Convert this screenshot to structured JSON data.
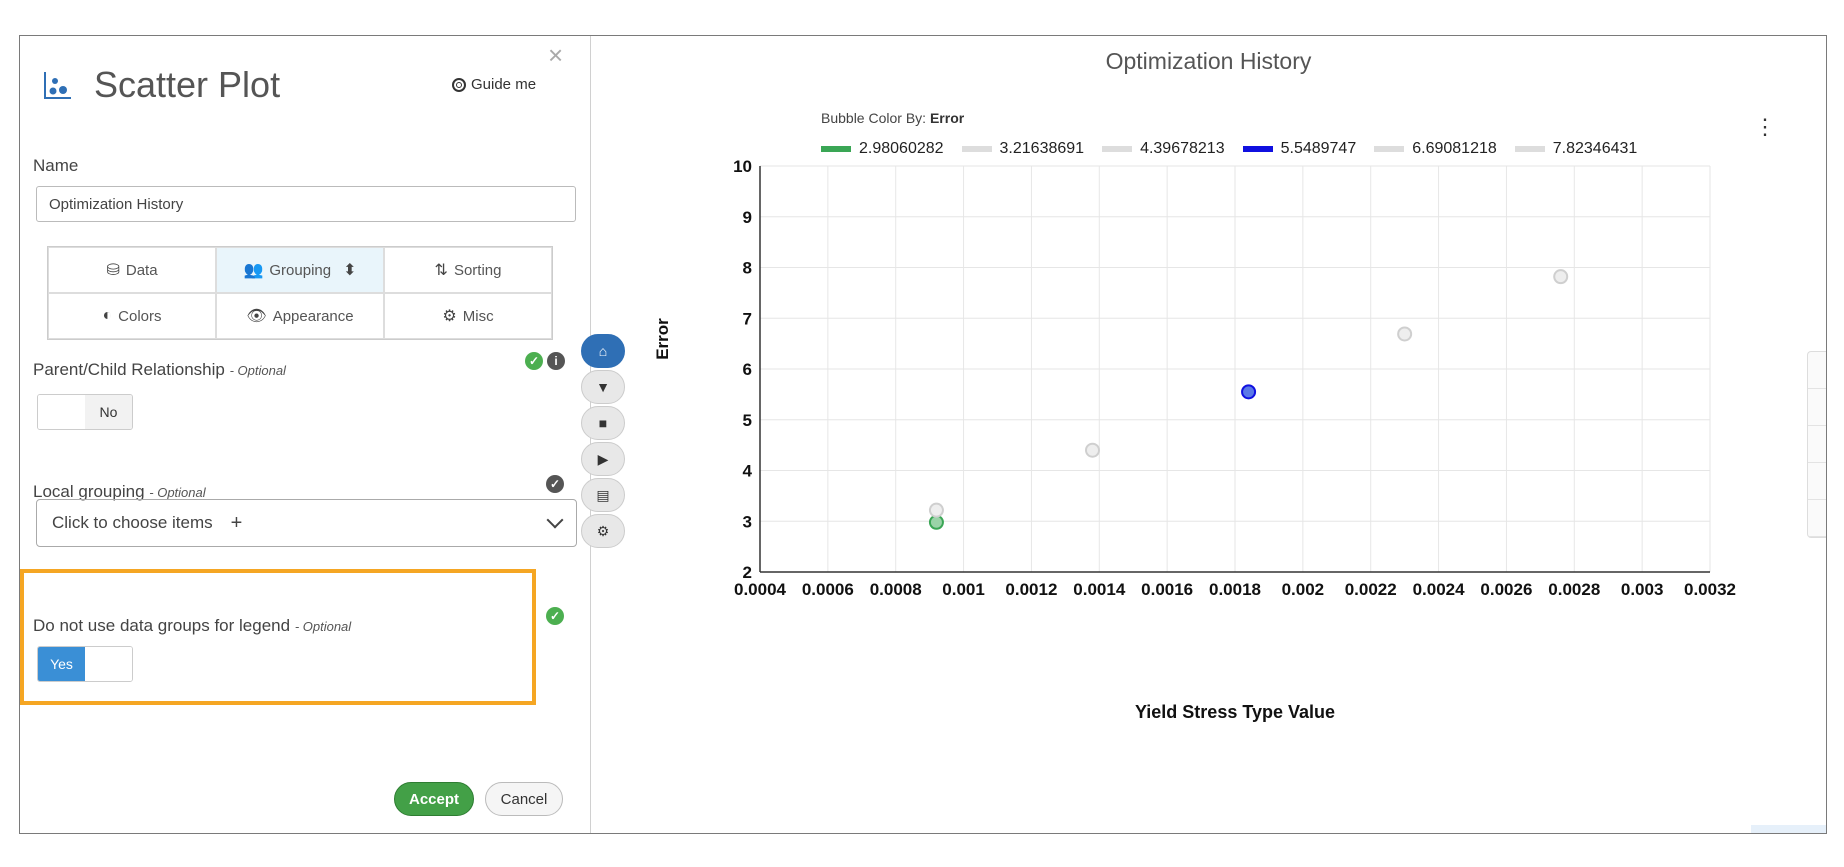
{
  "dialog": {
    "title": "Scatter Plot",
    "guide_label": "Guide me",
    "close_symbol": "×",
    "name_label": "Name",
    "name_value": "Optimization History",
    "tabs": [
      {
        "label": "Data",
        "icon": "database-icon",
        "glyph": "⛁"
      },
      {
        "label": "Grouping",
        "icon": "users-icon",
        "glyph": "👥"
      },
      {
        "label": "Sorting",
        "icon": "sort-icon",
        "glyph": "⇅"
      },
      {
        "label": "Colors",
        "icon": "contrast-icon",
        "glyph": "◐"
      },
      {
        "label": "Appearance",
        "icon": "eye-icon",
        "glyph": "👁"
      },
      {
        "label": "Misc",
        "icon": "gear-icon",
        "glyph": "⚙"
      }
    ],
    "sort_caret": "⬍",
    "parent_child": {
      "label": "Parent/Child Relationship",
      "optional": "- Optional",
      "toggle_value": "No"
    },
    "local_grouping": {
      "label": "Local grouping",
      "optional": "- Optional",
      "placeholder": "Click to choose items",
      "plus": "+"
    },
    "legend_groups": {
      "label": "Do not use data groups for legend",
      "optional": "- Optional",
      "toggle_value": "Yes"
    },
    "accept_label": "Accept",
    "cancel_label": "Cancel",
    "check_symbol": "✓",
    "info_symbol": "i"
  },
  "toolbar": {
    "buttons": [
      {
        "name": "home",
        "glyph": "⌂"
      },
      {
        "name": "filter",
        "glyph": "▼"
      },
      {
        "name": "stop",
        "glyph": "■"
      },
      {
        "name": "play",
        "glyph": "▶"
      },
      {
        "name": "file",
        "glyph": "▤"
      },
      {
        "name": "settings",
        "glyph": "⚙"
      }
    ]
  },
  "chart": {
    "kebab": "⋮",
    "bubble_color_by_prefix": "Bubble Color By:",
    "bubble_color_by_value": "Error"
  },
  "chart_data": {
    "type": "scatter",
    "title": "Optimization History",
    "xlabel": "Yield Stress Type Value",
    "ylabel": "Error",
    "xlim": [
      0.0004,
      0.0032
    ],
    "ylim": [
      2,
      10
    ],
    "x_ticks": [
      "0.0004",
      "0.0006",
      "0.0008",
      "0.001",
      "0.0012",
      "0.0014",
      "0.0016",
      "0.0018",
      "0.002",
      "0.0022",
      "0.0024",
      "0.0026",
      "0.0028",
      "0.003",
      "0.0032"
    ],
    "y_ticks": [
      "2",
      "3",
      "4",
      "5",
      "6",
      "7",
      "8",
      "9",
      "10"
    ],
    "grid": true,
    "legend_position": "top-left",
    "series": [
      {
        "name": "2.98060282",
        "color": "#3aa655",
        "x": [
          0.00092
        ],
        "y": [
          2.98
        ]
      },
      {
        "name": "3.21638691",
        "color": "#dddddd",
        "x": [
          0.00092
        ],
        "y": [
          3.22
        ]
      },
      {
        "name": "4.39678213",
        "color": "#dddddd",
        "x": [
          0.00138
        ],
        "y": [
          4.4
        ]
      },
      {
        "name": "5.5489747",
        "color": "#1010e0",
        "x": [
          0.00184
        ],
        "y": [
          5.55
        ]
      },
      {
        "name": "6.69081218",
        "color": "#dddddd",
        "x": [
          0.0023
        ],
        "y": [
          6.69
        ]
      },
      {
        "name": "7.82346431",
        "color": "#dddddd",
        "x": [
          0.00276
        ],
        "y": [
          7.82
        ]
      }
    ]
  }
}
